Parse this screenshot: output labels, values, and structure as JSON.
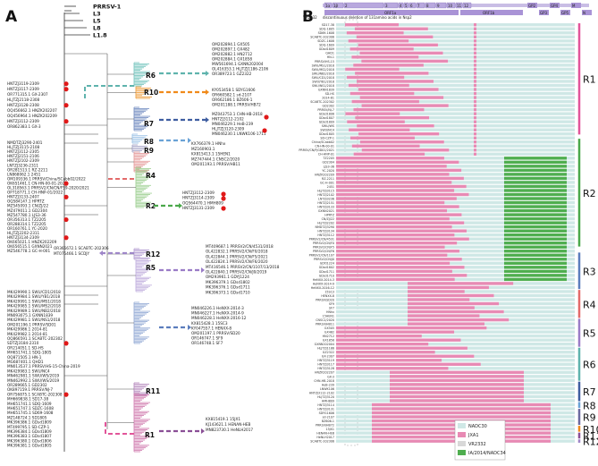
{
  "panels": {
    "a": "A",
    "b": "B"
  },
  "references": [
    "PRRSV-1",
    "L3",
    "L5",
    "L8",
    "L1.8"
  ],
  "clades": [
    "R6",
    "R10",
    "R7",
    "R8",
    "R9",
    "R4",
    "R2",
    "R12",
    "R5",
    "R3",
    "R11",
    "R1"
  ],
  "colors": {
    "R1": "#d486b5",
    "R2": "#a5d39a",
    "R3": "#9bb0d8",
    "R4": "#e7a0a0",
    "R5": "#c5b4e0",
    "R6": "#7fc9c2",
    "R7": "#7a92c4",
    "R8": "#9dc3e6",
    "R9": "#a9a7c9",
    "R10": "#f0a347",
    "R11": "#b98fc0",
    "R12": "#b9a4d6",
    "NADC30": "#cfe8e6",
    "JXA1": "#e88ab4",
    "VR2332": "#d8d8d8",
    "IA2014": "#4fae4f",
    "brackets": {
      "R1": "#e2559a",
      "R2": "#4aa84a",
      "R3": "#5b7dbd",
      "R4": "#e36a6a",
      "R5": "#9a7cc7",
      "R6": "#5fb3ad",
      "R7": "#3e5da0",
      "R8": "#6aa2d6",
      "R9": "#6c6aa0",
      "R10": "#f08a1a",
      "R11": "#8a4f96",
      "R12": "#9e86c8"
    }
  },
  "labels_top": [
    "OM202894.1 GX505",
    "OM202897.1 GX482",
    "OM202882.1 HN2712",
    "OM202884.1 GX1858",
    "MW561694.1 GXNN202004",
    "OL416353.1 HLJTZJ1186-2106",
    "OR389723.1 GZ2322"
  ],
  "labels_r10": [
    "KY053458.1 SDYG1606",
    "OR660582.1 sd-2107",
    "OR662186.1 BZ606-1",
    "OM201188.1 PRRSV/HB72"
  ],
  "labels_r7": [
    "MZ043753.1 CHN-HB-2018",
    "HNTZJ3112-2102",
    "MN046229.1 HeB-239",
    "HLJTZJ3120-2309",
    "MN046230.1 LNWK106-1711"
  ],
  "labels_r8r9": [
    "KX766379.1 HNhx",
    "MZ160903.1",
    "KX815413.1 15HEN1",
    "MZ747444.1 CNSC2/2020",
    "OM201193.1 PRRSV/HB11"
  ],
  "labels_r2": [
    "HNTZJ3112-2309",
    "HNTZJ3114-2309",
    "OQ564470.1 HMH809",
    "HNTZJ3131-2309"
  ],
  "labels_r12": [
    "OR365672.1 SCABTC-202306",
    "MT075466.1 SCDJY"
  ],
  "labels_r5": [
    "MT409687.1 PRRSV2/CN/4531/2018",
    "OL422832.1 PRRSV2/CN/F0/2018",
    "OL422844.1 PRRSV2/CN/F5/2021",
    "OL422824.1 PRRSV2/CN/F6/2020",
    "MT416546.1 PRRSV2/CN/1107/13/2018",
    "OL422840.1 PRRSV2/CN/J0/2019",
    "OM293961.1 GDYJ1224",
    "MK396379.1 GDsd1802",
    "MK396376.1 GDsd1711",
    "MK396373.1 GDsd1710"
  ],
  "labels_r3": [
    "MN046226.1 HeNXX-2014-3",
    "MN046227.1 HeNXX-2014-9",
    "MN046228.1 HeNXX-2016-12",
    "KX815428.1 15SC3",
    "KY047557.1 HENXX-8",
    "OM201197.1 PRRSV/SD20",
    "OR146747.1 SF9",
    "OR146748.1 SF7"
  ],
  "labels_r11": [
    "KX815419.1 15JX1",
    "KJ143621.1 HENAN-HEB",
    "MN823730.1 HeNLH2017"
  ],
  "labels_left_r6": [
    "HNTZJ3119-2309",
    "HNTZJ3117-2309",
    "OR771315.1 GX-2307",
    "HLJTZJ2118-2308",
    "HNTZJ3128-2308",
    "OQ456662.1 HNZK202207",
    "OQ456964.1 HNZK202209",
    "HNTZJ3112-2309",
    "OR862383.1 GX-3"
  ],
  "labels_left_r4": [
    "NMDTZJ3290-2401",
    "HLJTZJ3115-2108",
    "HNTZJ3112-2305",
    "HNTZJ2151-2106",
    "HNTZJ2102-2309",
    "LNTZJ3236-2311",
    "OR281513.1 RZ-2211",
    "LN868062.1 2451",
    "OM109336.1 PRRSV/China/SCabb02/2022",
    "OK651461.1 CN-HN-00-01-2021",
    "OL318563.1 PRRSV2/CN/CN/F59-2020/2021",
    "OP718771.1 CH-HNP-01/2022",
    "HNTZJ3133-2407",
    "OQ584147.1 HPRTZ",
    "MZ545093.1 CN/ZJ/22",
    "MZ479011.1 GD2304",
    "MZ547780.1 LJS3-36",
    "OR356313.1 TZ2205",
    "OR288314.1 TZ2205",
    "OR160761.1 YC-2020",
    "HLJTZJ2202-2311",
    "HNTZJ3134-2309",
    "OK665021.1 HNZK202209",
    "OK656515.1 GXNN2021",
    "MZ546778.1 GC-H-001"
  ],
  "labels_left_r1": [
    "MK429990.1 SWU/CD1/2018",
    "MK429984.1 SWU/YB1/2018",
    "MK429991.1 SWU/MS1/2018",
    "MK429985.1 SWU/MS2/2018",
    "MK429989.1 SWU/NB2/2018",
    "MN093075.1 GXNN1839",
    "MK429981.1 SWU/NS1/2018",
    "OM201196.1 PRRSV/SD01",
    "MK429986.1 2014-81",
    "MK429982.1 2014-81",
    "OQ866591.1 SCABTC-202302",
    "SDTZJ3184-2310",
    "OR214051.1 SD-HS",
    "MH651741.1 SDQ-1805",
    "OQ871505.1 HN-1",
    "MG687401.1 QHD1",
    "MN013537.1 PRRSV/HS-15-China-2019",
    "MK429983.1 SWU/NC4",
    "MN462981.1 SWU/WS/2019",
    "MN462992.1 SWU/WS/2019",
    "OR289665.1 GD2302",
    "OK897159.1 PRRSV/NJ-7",
    "OR756875.1 SCABTC-202308",
    "MH669838.1 SD17-38",
    "MH651741.1 SDQ-1609",
    "MH651747.1 SDZC-1608",
    "MH651745.1 SD69-1608",
    "MZ148724.1 SD1805",
    "MK396386.1 GDsd1809",
    "MT499795.1 SD-CZP-1",
    "MK396384.1 GDsd1809",
    "MK396383.1 GDsd1807",
    "MK396380.1 GDsd1806",
    "MK396381.1 GDsd1805"
  ],
  "genome": {
    "title": "VR2332",
    "subtitle": "discontinuous deletion of 131amino acids in Nsp2",
    "nsp": [
      "1α",
      "1β",
      "2",
      "3",
      "4",
      "5",
      "6",
      "7",
      "8",
      "9",
      "10",
      "11",
      "12"
    ],
    "orfs": [
      "ORF1a",
      "ORF1b",
      "GP2",
      "GP3",
      "GP4",
      "GP5",
      "M",
      "N"
    ],
    "rows_top": [
      "SD17-38",
      "SDQ-1805",
      "SD69-1608",
      "SCABTC-202306",
      "SDZC-1608",
      "SDQ-1609",
      "GDsd1809",
      "QHD1",
      "HN-1",
      "PRRSV/HS-15",
      "SWU/MS1/2018",
      "SWU/MS2/2018",
      "SWU/NB2/2018",
      "SWU/CD1/2018",
      "SWU/YB1/2018",
      "SWU/NS1/2018",
      "GXNN1839",
      "SD-HS",
      "2014-81",
      "SCABTC-202302",
      "GD2302",
      "PRRSV/NJ-7",
      "GDsd1806",
      "GDsd1807",
      "GDsd1809",
      "SWU/WS",
      "SWU/NC4",
      "GDsd1805",
      "SD-CZP-1",
      "China/SCabb02",
      "CN-HN-00-01",
      "PRRSV/CN/FJGD01/2021",
      "CH-HNP-01",
      "TZ2205",
      "GD2304",
      "LJS3-36",
      "YC-2020",
      "HNZK202209"
    ],
    "rows_mid": [
      "RZ-2211",
      "GC-H-001",
      "2451",
      "HLJTZJ3115",
      "HNTZJ2102",
      "LNTZJ3236",
      "HNTZJ2151",
      "HNTZJ3133",
      "GXNN2021",
      "HPRTZ",
      "CN/ZJ/22",
      "HLJTZJ2202",
      "NMDTZJ3290",
      "HNTZJ3134",
      "HNTZJ3112",
      "PRRSV2/CN/4531",
      "PRRSV2/CN/F0",
      "PRRSV2/CN/F5",
      "PRRSV2/CN/F6",
      "PRRSV2/CN/1107",
      "PRRSV2/CN/J0",
      "GDYJ1224",
      "GDsd1802",
      "GDsd1711",
      "GDsd1710",
      "HeNXX-2014-3",
      "HeNXX-2014-9",
      "HeNXX-2016-12",
      "15SC3",
      "HENXX-8",
      "PRRSV/SD20",
      "SF9",
      "SF7",
      "HNhx",
      "15HEN1",
      "CNSC2/2020",
      "PRRSV/HB11"
    ],
    "rows_bottom": [
      "GX505",
      "GX482",
      "HN2712",
      "GX1858",
      "GXNN202004",
      "HLJTZJ1186",
      "GZ2322",
      "GX-2307",
      "HNTZJ3119",
      "HNTZJ3117",
      "HNTZJ3128",
      "HNZK202207",
      "GX-3",
      "CHN-HB-2018",
      "HeB-239",
      "LNWK106",
      "HNTZJ3112-2102",
      "HLJTZJ3120",
      "HMH809",
      "HNTZJ3114",
      "HNTZJ3131",
      "SDYG1606",
      "sd-2107",
      "BZ606-1",
      "PRRSV/HB72",
      "15JX1",
      "HENAN-HEB",
      "HeNLH2017",
      "SCABTC-202306"
    ]
  },
  "legend": [
    {
      "name": "NADC30",
      "color": "#cfe8e6"
    },
    {
      "name": "JXA1",
      "color": "#e88ab4"
    },
    {
      "name": "VR2332",
      "color": "#d8d8d8"
    },
    {
      "name": "IA/2014/NADC34",
      "color": "#4fae4f"
    }
  ]
}
